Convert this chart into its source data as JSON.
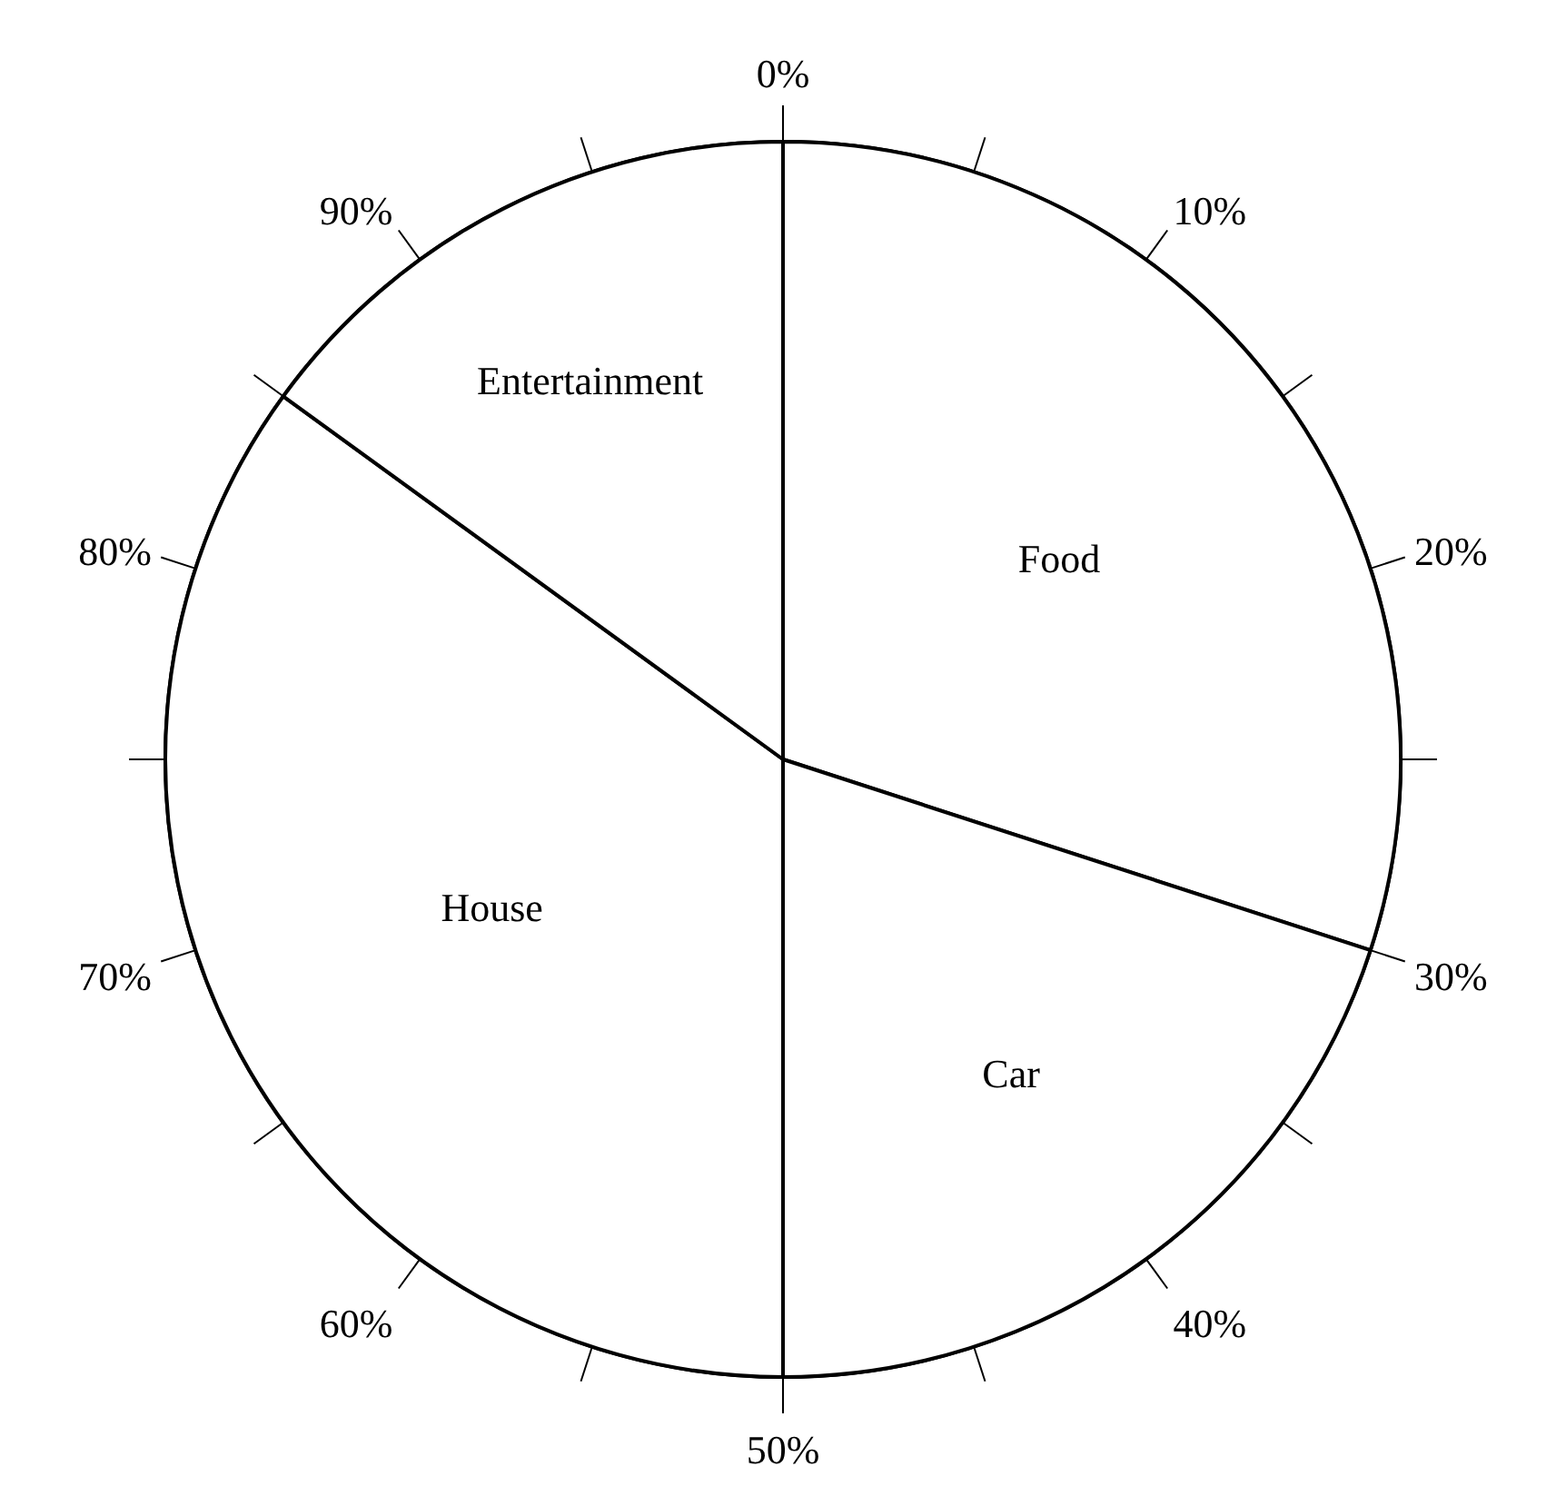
{
  "chart_data": {
    "type": "pie",
    "categories": [
      "Food",
      "Car",
      "House",
      "Entertainment"
    ],
    "values": [
      30,
      20,
      35,
      15
    ],
    "colors": [
      "#ffffff",
      "#ffffff",
      "#ffffff",
      "#ffffff"
    ],
    "annotations": [
      "0%",
      "10%",
      "20%",
      "30%",
      "40%",
      "50%",
      "60%",
      "70%",
      "80%",
      "90%"
    ]
  }
}
